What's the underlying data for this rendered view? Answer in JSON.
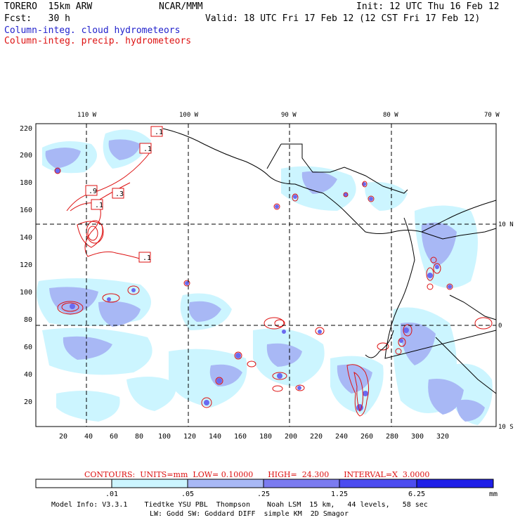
{
  "header": {
    "model_name": "TORERO  15km ARW",
    "forecast": "Fcst:   30 h",
    "source": "NCAR/MMM",
    "init": "Init: 12 UTC Thu 16 Feb 12",
    "valid": "Valid: 18 UTC Fri 17 Feb 12 (12 CST Fri 17 Feb 12)",
    "field_cloud": "Column-integ. cloud hydrometeors",
    "field_precip": "Column-integ. precip. hydrometeors"
  },
  "map": {
    "lon_labels": [
      "110 W",
      "100 W",
      "90 W",
      "80 W",
      "70 W"
    ],
    "lat_labels": [
      "10 N",
      "0",
      "10 S"
    ],
    "y_ticks": [
      "220",
      "200",
      "180",
      "160",
      "140",
      "120",
      "100",
      "80",
      "60",
      "40",
      "20"
    ],
    "x_ticks": [
      "20",
      "40",
      "60",
      "80",
      "100",
      "120",
      "140",
      "160",
      "180",
      "200",
      "220",
      "240",
      "260",
      "280",
      "300",
      "320"
    ],
    "contour_labels": [
      ".1",
      ".1",
      ".9",
      ".3",
      ".1",
      ".1"
    ]
  },
  "footer": {
    "contours_line": "CONTOURS:  UNITS=mm  LOW= 0.10000      HIGH=  24.300      INTERVAL=X  3.0000",
    "scale_labels": [
      ".01",
      ".05",
      ".25",
      "1.25",
      "6.25"
    ],
    "scale_unit": "mm",
    "scale_colors": [
      "#ffffff",
      "#ccf5ff",
      "#a8b8f5",
      "#7b7bf0",
      "#4c4cf0",
      "#1f1fe8"
    ],
    "model_info_1": "Model Info: V3.3.1    Tiedtke YSU PBL  Thompson    Noah LSM  15 km,   44 levels,   58 sec",
    "model_info_2": "LW: Godd SW: Goddard DIFF  simple KM  2D Smagor"
  }
}
